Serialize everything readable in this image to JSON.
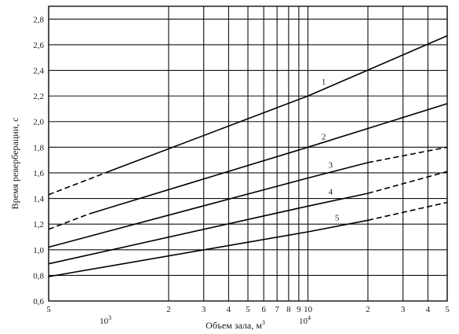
{
  "chart_data": {
    "type": "line",
    "xlabel": "Объем зала, м",
    "xlabel_sup": "3",
    "ylabel": "Время реверберации, с",
    "x_scale": "log",
    "xlim": [
      500,
      50000
    ],
    "ylim": [
      0.6,
      2.9
    ],
    "grid": true,
    "y_ticks": [
      "0,6",
      "0,8",
      "1,0",
      "1,2",
      "1,4",
      "1,6",
      "1,8",
      "2,0",
      "2,2",
      "2,4",
      "2,6",
      "2,8"
    ],
    "x_ticks": [
      {
        "value": 500,
        "label": "5"
      },
      {
        "value": 2000,
        "label": "2"
      },
      {
        "value": 3000,
        "label": "3"
      },
      {
        "value": 4000,
        "label": "4"
      },
      {
        "value": 5000,
        "label": "5"
      },
      {
        "value": 6000,
        "label": "6"
      },
      {
        "value": 7000,
        "label": "7"
      },
      {
        "value": 8000,
        "label": "8"
      },
      {
        "value": 9000,
        "label": "9"
      },
      {
        "value": 10000,
        "label": "10"
      },
      {
        "value": 20000,
        "label": "2"
      },
      {
        "value": 30000,
        "label": "3"
      },
      {
        "value": 40000,
        "label": "4"
      },
      {
        "value": 50000,
        "label": "5"
      }
    ],
    "x_decades": [
      {
        "value": 1000,
        "base": "10",
        "exp": "3"
      },
      {
        "value": 10000,
        "base": "10",
        "exp": "4"
      }
    ],
    "series": [
      {
        "name": "1",
        "label_x": 12000,
        "label_y": 2.29,
        "segments": [
          {
            "style": "dashed",
            "points": [
              [
                500,
                1.43
              ],
              [
                1000,
                1.61
              ]
            ]
          },
          {
            "style": "solid",
            "points": [
              [
                1000,
                1.61
              ],
              [
                10000,
                2.2
              ],
              [
                50000,
                2.67
              ]
            ]
          }
        ]
      },
      {
        "name": "2",
        "label_x": 12000,
        "label_y": 1.86,
        "segments": [
          {
            "style": "dashed",
            "points": [
              [
                500,
                1.16
              ],
              [
                800,
                1.28
              ]
            ]
          },
          {
            "style": "solid",
            "points": [
              [
                800,
                1.28
              ],
              [
                10000,
                1.8
              ],
              [
                50000,
                2.14
              ]
            ]
          }
        ]
      },
      {
        "name": "3",
        "label_x": 13000,
        "label_y": 1.64,
        "segments": [
          {
            "style": "solid",
            "points": [
              [
                500,
                1.02
              ],
              [
                10000,
                1.56
              ],
              [
                20000,
                1.68
              ]
            ]
          },
          {
            "style": "dashed",
            "points": [
              [
                20000,
                1.68
              ],
              [
                50000,
                1.8
              ]
            ]
          }
        ]
      },
      {
        "name": "4",
        "label_x": 13000,
        "label_y": 1.43,
        "segments": [
          {
            "style": "solid",
            "points": [
              [
                500,
                0.89
              ],
              [
                10000,
                1.34
              ],
              [
                20000,
                1.44
              ]
            ]
          },
          {
            "style": "dashed",
            "points": [
              [
                20000,
                1.44
              ],
              [
                50000,
                1.61
              ]
            ]
          }
        ]
      },
      {
        "name": "5",
        "label_x": 14000,
        "label_y": 1.23,
        "segments": [
          {
            "style": "solid",
            "points": [
              [
                500,
                0.79
              ],
              [
                10000,
                1.14
              ],
              [
                20000,
                1.23
              ]
            ]
          },
          {
            "style": "dashed",
            "points": [
              [
                20000,
                1.23
              ],
              [
                50000,
                1.37
              ]
            ]
          }
        ]
      }
    ]
  }
}
